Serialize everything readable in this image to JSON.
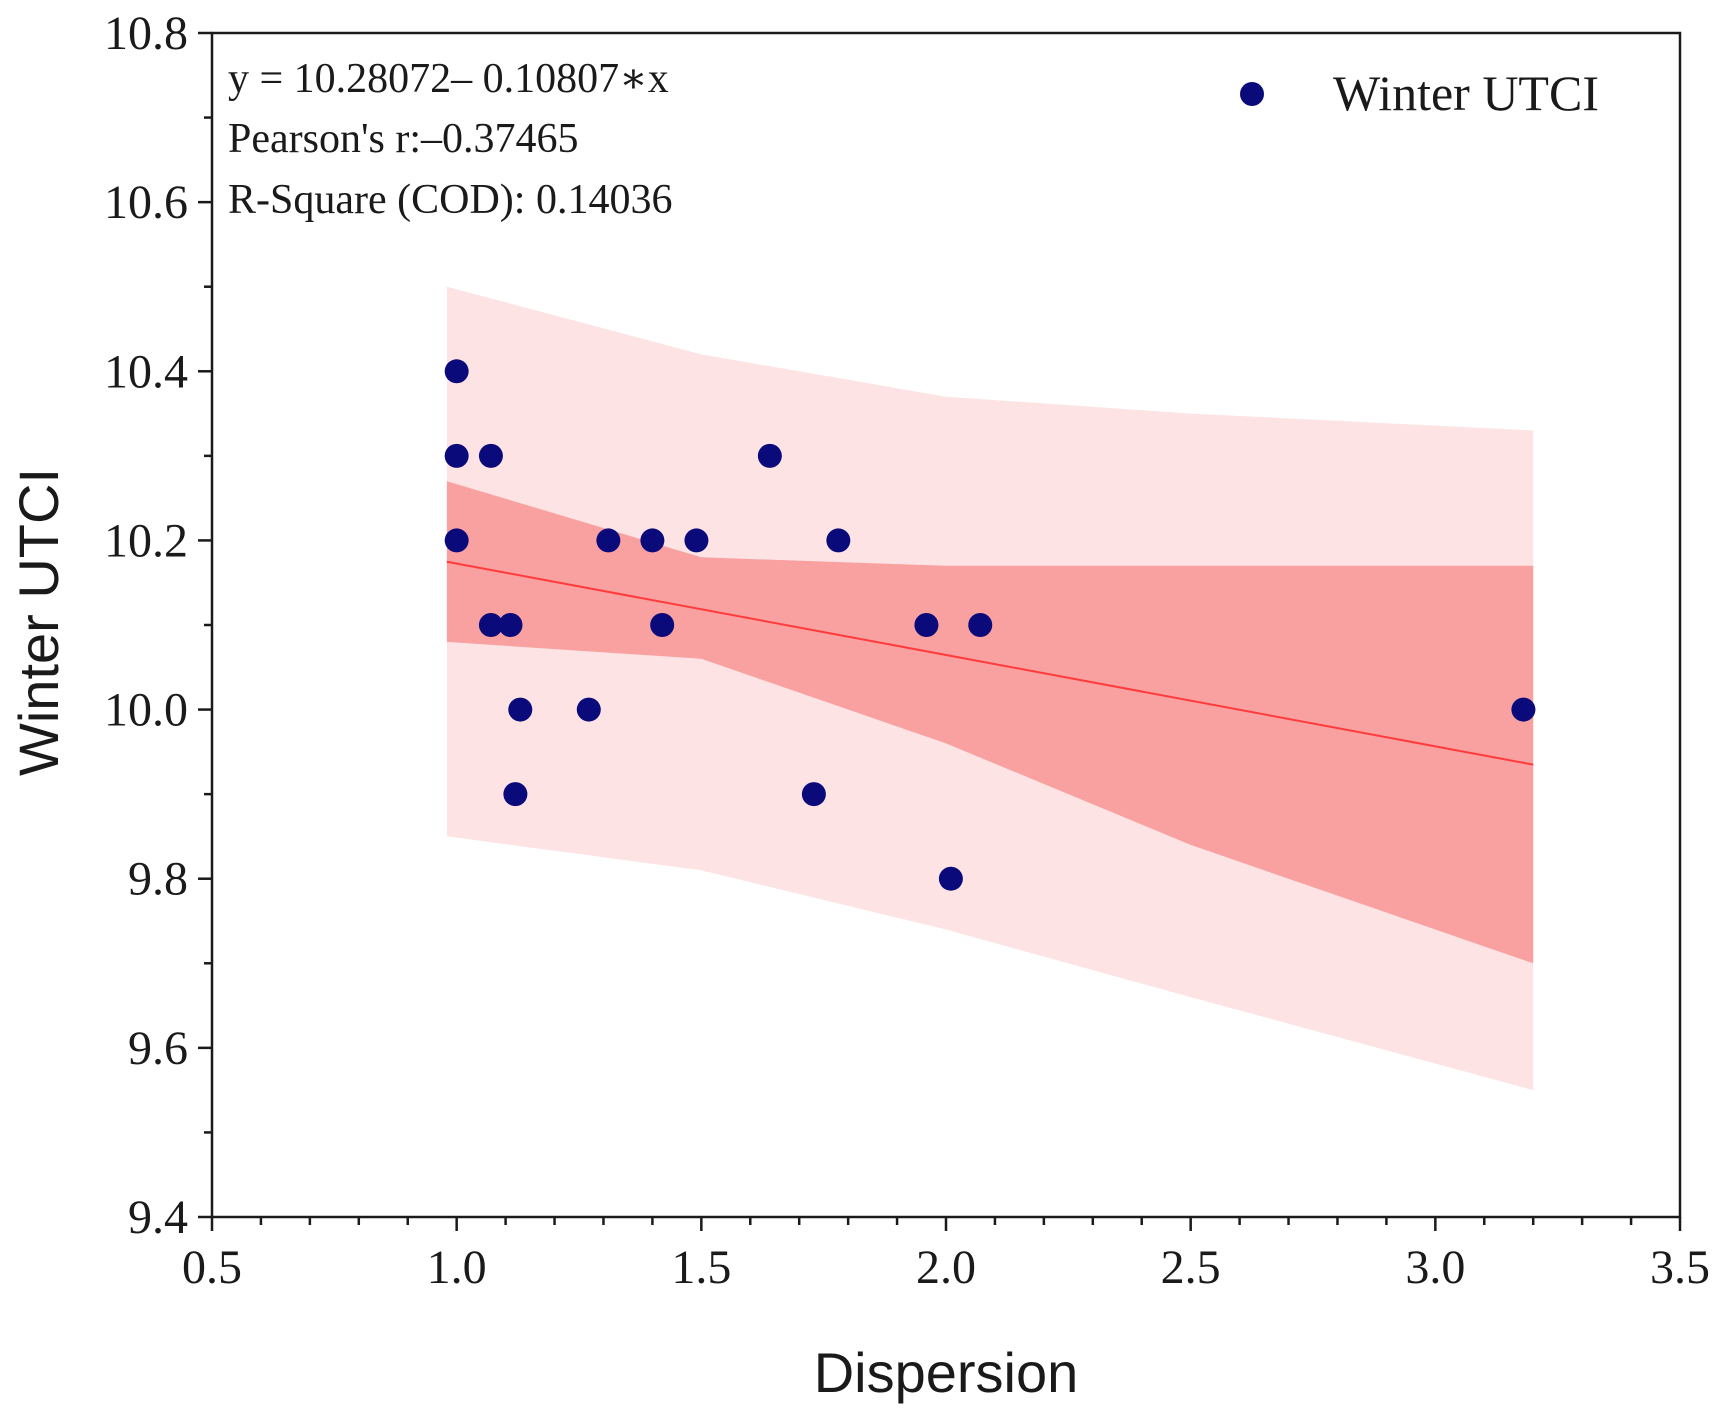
{
  "chart_data": {
    "type": "scatter",
    "xlabel": "Dispersion",
    "ylabel": "Winter UTCI",
    "xlim": [
      0.5,
      3.5
    ],
    "ylim": [
      9.4,
      10.8
    ],
    "xticks": [
      "0.5",
      "1.0",
      "1.5",
      "2.0",
      "2.5",
      "3.0",
      "3.5"
    ],
    "yticks": [
      "9.4",
      "9.6",
      "9.8",
      "10.0",
      "10.2",
      "10.4",
      "10.6",
      "10.8"
    ],
    "legend": {
      "label": "Winter UTCI",
      "position": "top-right"
    },
    "annotations": {
      "equation": "y = 10.28072– 0.10807∗x",
      "pearson": "Pearson's r:–0.37465",
      "rsquare": "R-Square (COD): 0.14036"
    },
    "series": [
      {
        "name": "Winter UTCI",
        "color": "#0a0a7a",
        "points": [
          {
            "x": 1.0,
            "y": 10.4
          },
          {
            "x": 1.0,
            "y": 10.3
          },
          {
            "x": 1.07,
            "y": 10.3
          },
          {
            "x": 1.0,
            "y": 10.2
          },
          {
            "x": 1.07,
            "y": 10.1
          },
          {
            "x": 1.11,
            "y": 10.1
          },
          {
            "x": 1.13,
            "y": 10.0
          },
          {
            "x": 1.12,
            "y": 9.9
          },
          {
            "x": 1.27,
            "y": 10.0
          },
          {
            "x": 1.31,
            "y": 10.2
          },
          {
            "x": 1.4,
            "y": 10.2
          },
          {
            "x": 1.42,
            "y": 10.1
          },
          {
            "x": 1.49,
            "y": 10.2
          },
          {
            "x": 1.64,
            "y": 10.3
          },
          {
            "x": 1.73,
            "y": 9.9
          },
          {
            "x": 1.78,
            "y": 10.2
          },
          {
            "x": 1.96,
            "y": 10.1
          },
          {
            "x": 2.01,
            "y": 9.8
          },
          {
            "x": 2.07,
            "y": 10.1
          },
          {
            "x": 3.18,
            "y": 10.0
          }
        ]
      }
    ],
    "fit": {
      "intercept": 10.28072,
      "slope": -0.10807,
      "x_range": [
        0.98,
        3.2
      ],
      "color": "#ff3b3b",
      "confidence_band": {
        "color": "#f9a0a0",
        "x": [
          0.98,
          1.5,
          2.0,
          2.5,
          3.2
        ],
        "upper": [
          10.27,
          10.18,
          10.17,
          10.17,
          10.17
        ],
        "lower": [
          10.08,
          10.06,
          9.96,
          9.84,
          9.7
        ]
      },
      "prediction_band": {
        "color": "#fde3e3",
        "x": [
          0.98,
          1.5,
          2.0,
          2.5,
          3.2
        ],
        "upper": [
          10.5,
          10.42,
          10.37,
          10.35,
          10.33
        ],
        "lower": [
          9.85,
          9.81,
          9.74,
          9.66,
          9.55
        ]
      }
    }
  }
}
